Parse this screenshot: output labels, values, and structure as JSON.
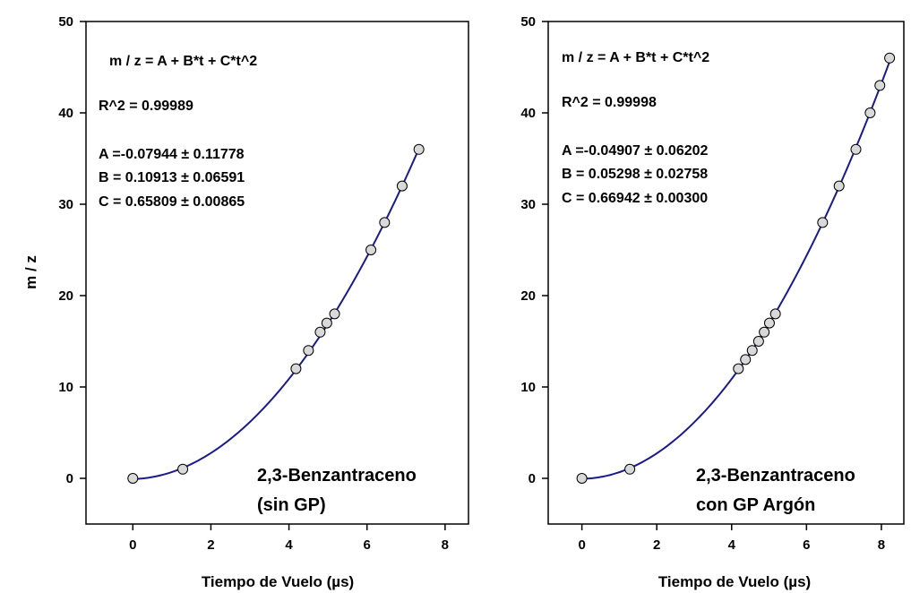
{
  "chart_data": [
    {
      "type": "scatter",
      "xlabel": "Tiempo de Vuelo (µs)",
      "ylabel": "m / z",
      "xlim": [
        -1.2,
        8.6
      ],
      "ylim": [
        -5,
        50
      ],
      "xticks": [
        0,
        2,
        4,
        6,
        8
      ],
      "yticks": [
        0,
        10,
        20,
        30,
        40,
        50
      ],
      "grid": false,
      "series": [
        {
          "x": [
            0,
            1.28,
            4.18,
            4.5,
            4.8,
            4.97,
            5.17,
            6.1,
            6.45,
            6.9,
            7.33
          ],
          "y": [
            0,
            1,
            12,
            14,
            16,
            17,
            18,
            25,
            28,
            32,
            36
          ]
        }
      ],
      "fit": {
        "A": -0.07944,
        "B": 0.10913,
        "C": 0.65809,
        "x_range": [
          0,
          7.33
        ]
      },
      "annotations": {
        "equation": "m / z = A + B*t + C*t^2",
        "r2": "R^2   =  0.99989",
        "a": "A =-0.07944 ± 0.11778",
        "b": "B = 0.10913 ± 0.06591",
        "c": "C = 0.65809 ± 0.00865",
        "label_line1": "2,3-Benzantraceno",
        "label_line2": "(sin GP)"
      },
      "colors": {
        "curve": "#1a1a8c",
        "marker_fill": "#d9d9d9"
      }
    },
    {
      "type": "scatter",
      "xlabel": "Tiempo de Vuelo (µs)",
      "ylabel": "",
      "xlim": [
        -0.9,
        8.6
      ],
      "ylim": [
        -5,
        50
      ],
      "xticks": [
        0,
        2,
        4,
        6,
        8
      ],
      "yticks": [
        0,
        10,
        20,
        30,
        40,
        50
      ],
      "grid": false,
      "series": [
        {
          "x": [
            0,
            1.28,
            4.18,
            4.37,
            4.55,
            4.72,
            4.87,
            5.01,
            5.17,
            6.43,
            6.87,
            7.32,
            7.7,
            7.96,
            8.22
          ],
          "y": [
            0,
            1,
            12,
            13,
            14,
            15,
            16,
            17,
            18,
            28,
            32,
            36,
            40,
            43,
            46
          ]
        }
      ],
      "fit": {
        "A": -0.04907,
        "B": 0.05298,
        "C": 0.66942,
        "x_range": [
          0,
          8.22
        ]
      },
      "annotations": {
        "equation": "m / z = A + B*t + C*t^2",
        "r2": "R^2   =  0.99998",
        "a": "A =-0.04907 ± 0.06202",
        "b": "B = 0.05298 ± 0.02758",
        "c": "C = 0.66942 ± 0.00300",
        "label_line1": "2,3-Benzantraceno",
        "label_line2": "con GP Argón"
      },
      "colors": {
        "curve": "#1a1a8c",
        "marker_fill": "#d9d9d9"
      }
    }
  ]
}
